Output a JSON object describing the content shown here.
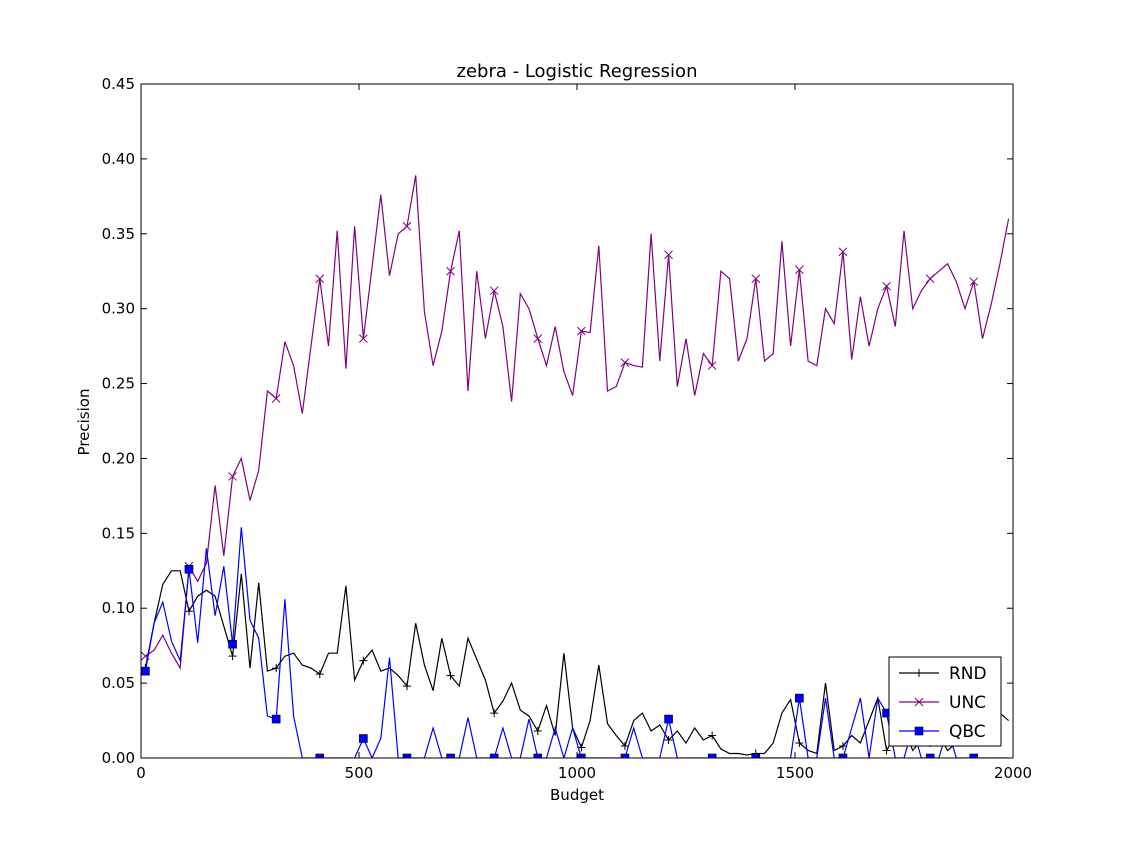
{
  "chart_data": {
    "type": "line",
    "title": "zebra - Logistic Regression",
    "xlabel": "Budget",
    "ylabel": "Precision",
    "xlim": [
      0,
      2000
    ],
    "ylim": [
      0,
      0.45
    ],
    "xticks": [
      0,
      500,
      1000,
      1500,
      2000
    ],
    "xtick_labels": [
      "0",
      "500",
      "1000",
      "1500",
      "2000"
    ],
    "yticks": [
      0,
      0.05,
      0.1,
      0.15,
      0.2,
      0.25,
      0.3,
      0.35,
      0.4,
      0.45
    ],
    "ytick_labels": [
      "0.00",
      "0.05",
      "0.10",
      "0.15",
      "0.20",
      "0.25",
      "0.30",
      "0.35",
      "0.40",
      "0.45"
    ],
    "grid": false,
    "legend_position": "bottom-right",
    "series": [
      {
        "name": "RND",
        "color": "#000000",
        "marker": "plus",
        "x": [
          10,
          30,
          50,
          70,
          90,
          110,
          130,
          150,
          170,
          190,
          210,
          230,
          250,
          270,
          290,
          310,
          330,
          350,
          370,
          390,
          410,
          430,
          450,
          470,
          490,
          510,
          530,
          550,
          570,
          590,
          610,
          630,
          650,
          670,
          690,
          710,
          730,
          750,
          770,
          790,
          810,
          830,
          850,
          870,
          890,
          910,
          930,
          950,
          970,
          990,
          1010,
          1030,
          1050,
          1070,
          1090,
          1110,
          1130,
          1150,
          1170,
          1190,
          1210,
          1230,
          1250,
          1270,
          1290,
          1310,
          1330,
          1350,
          1370,
          1390,
          1410,
          1430,
          1450,
          1470,
          1490,
          1510,
          1530,
          1550,
          1570,
          1590,
          1610,
          1630,
          1650,
          1670,
          1690,
          1710,
          1730,
          1750,
          1770,
          1790,
          1810,
          1830,
          1850,
          1870,
          1890,
          1910,
          1930,
          1950,
          1970,
          1990
        ],
        "values": [
          0.06,
          0.09,
          0.116,
          0.125,
          0.125,
          0.098,
          0.108,
          0.112,
          0.108,
          0.088,
          0.068,
          0.123,
          0.06,
          0.117,
          0.058,
          0.06,
          0.068,
          0.07,
          0.062,
          0.06,
          0.056,
          0.07,
          0.07,
          0.115,
          0.052,
          0.065,
          0.072,
          0.058,
          0.06,
          0.055,
          0.048,
          0.09,
          0.062,
          0.045,
          0.08,
          0.055,
          0.048,
          0.08,
          0.066,
          0.052,
          0.03,
          0.038,
          0.05,
          0.032,
          0.028,
          0.018,
          0.035,
          0.015,
          0.07,
          0.02,
          0.007,
          0.025,
          0.062,
          0.023,
          0.015,
          0.008,
          0.025,
          0.03,
          0.018,
          0.022,
          0.012,
          0.018,
          0.01,
          0.02,
          0.012,
          0.015,
          0.006,
          0.003,
          0.003,
          0.002,
          0.003,
          0.003,
          0.01,
          0.03,
          0.039,
          0.01,
          0.005,
          0.003,
          0.05,
          0.005,
          0.008,
          0.015,
          0.01,
          0.025,
          0.04,
          0.005,
          0.015,
          0.02,
          0.005,
          0.012,
          0.01,
          0.015,
          0.005,
          0.01,
          0.01,
          0.02,
          0.01,
          0.01,
          0.03,
          0.025
        ]
      },
      {
        "name": "UNC",
        "color": "#800080",
        "marker": "x",
        "x": [
          10,
          30,
          50,
          70,
          90,
          110,
          130,
          150,
          170,
          190,
          210,
          230,
          250,
          270,
          290,
          310,
          330,
          350,
          370,
          390,
          410,
          430,
          450,
          470,
          490,
          510,
          530,
          550,
          570,
          590,
          610,
          630,
          650,
          670,
          690,
          710,
          730,
          750,
          770,
          790,
          810,
          830,
          850,
          870,
          890,
          910,
          930,
          950,
          970,
          990,
          1010,
          1030,
          1050,
          1070,
          1090,
          1110,
          1130,
          1150,
          1170,
          1190,
          1210,
          1230,
          1250,
          1270,
          1290,
          1310,
          1330,
          1350,
          1370,
          1390,
          1410,
          1430,
          1450,
          1470,
          1490,
          1510,
          1530,
          1550,
          1570,
          1590,
          1610,
          1630,
          1650,
          1670,
          1690,
          1710,
          1730,
          1750,
          1770,
          1790,
          1810,
          1830,
          1850,
          1870,
          1890,
          1910,
          1930,
          1950,
          1970,
          1990
        ],
        "values": [
          0.068,
          0.072,
          0.082,
          0.07,
          0.06,
          0.128,
          0.118,
          0.13,
          0.182,
          0.135,
          0.188,
          0.2,
          0.172,
          0.192,
          0.245,
          0.24,
          0.278,
          0.262,
          0.23,
          0.275,
          0.32,
          0.275,
          0.352,
          0.26,
          0.355,
          0.28,
          0.328,
          0.376,
          0.322,
          0.35,
          0.355,
          0.389,
          0.298,
          0.262,
          0.285,
          0.325,
          0.352,
          0.245,
          0.325,
          0.28,
          0.312,
          0.288,
          0.238,
          0.31,
          0.3,
          0.28,
          0.262,
          0.288,
          0.258,
          0.242,
          0.285,
          0.284,
          0.342,
          0.245,
          0.248,
          0.264,
          0.262,
          0.261,
          0.35,
          0.265,
          0.336,
          0.248,
          0.28,
          0.242,
          0.27,
          0.262,
          0.325,
          0.32,
          0.265,
          0.28,
          0.32,
          0.265,
          0.27,
          0.345,
          0.275,
          0.326,
          0.265,
          0.262,
          0.3,
          0.29,
          0.338,
          0.266,
          0.308,
          0.275,
          0.3,
          0.315,
          0.288,
          0.352,
          0.3,
          0.312,
          0.32,
          0.325,
          0.33,
          0.318,
          0.3,
          0.318,
          0.28,
          0.303,
          0.33,
          0.36
        ]
      },
      {
        "name": "QBC",
        "color": "#0000ff",
        "marker": "square",
        "x": [
          10,
          30,
          50,
          70,
          90,
          110,
          130,
          150,
          170,
          190,
          210,
          230,
          250,
          270,
          290,
          310,
          330,
          350,
          370,
          390,
          410,
          430,
          450,
          470,
          490,
          510,
          530,
          550,
          570,
          590,
          610,
          630,
          650,
          670,
          690,
          710,
          730,
          750,
          770,
          790,
          810,
          830,
          850,
          870,
          890,
          910,
          930,
          950,
          970,
          990,
          1010,
          1030,
          1050,
          1070,
          1090,
          1110,
          1130,
          1150,
          1170,
          1190,
          1210,
          1230,
          1250,
          1270,
          1290,
          1310,
          1330,
          1350,
          1370,
          1390,
          1410,
          1430,
          1450,
          1470,
          1490,
          1510,
          1530,
          1550,
          1570,
          1590,
          1610,
          1630,
          1650,
          1670,
          1690,
          1710,
          1730,
          1750,
          1770,
          1790,
          1810,
          1830,
          1850,
          1870,
          1890,
          1910,
          1930,
          1950,
          1970,
          1990
        ],
        "values": [
          0.058,
          0.09,
          0.104,
          0.078,
          0.065,
          0.126,
          0.077,
          0.14,
          0.095,
          0.128,
          0.076,
          0.154,
          0.092,
          0.08,
          0.028,
          0.026,
          0.106,
          0.028,
          0,
          0,
          0,
          0,
          0,
          0,
          0,
          0.013,
          0,
          0.013,
          0.067,
          0,
          0,
          0,
          0,
          0.02,
          0,
          0,
          0,
          0.027,
          0,
          0,
          0,
          0.02,
          0,
          0,
          0.026,
          0,
          0,
          0.02,
          0,
          0.02,
          0,
          0,
          0,
          0,
          0,
          0,
          0.02,
          0,
          0,
          0,
          0.026,
          0,
          0,
          0,
          0,
          0,
          0,
          0,
          0,
          0,
          0,
          0,
          0,
          0,
          0,
          0.04,
          0,
          0,
          0.04,
          0,
          0,
          0.02,
          0.04,
          0,
          0.04,
          0.03,
          0,
          0,
          0.02,
          0,
          0,
          0,
          0.02,
          0,
          0,
          0,
          0,
          0,
          0,
          0
        ]
      }
    ]
  }
}
